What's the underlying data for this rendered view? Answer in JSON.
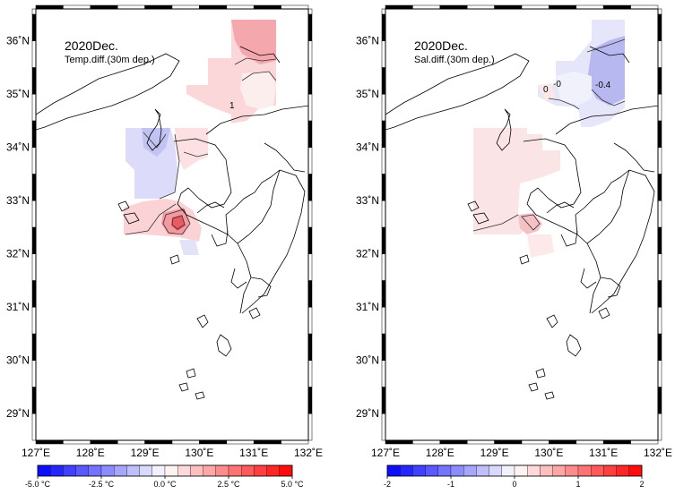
{
  "left_map": {
    "title": "2020Dec.",
    "subtitle": "Temp.diff.(30m dep.)",
    "contour_labels": [
      "1"
    ],
    "colorbar": {
      "ticks": [
        "-5.0 °C",
        "-2.5 °C",
        "0.0 °C",
        "2.5 °C",
        "5.0 °C"
      ],
      "min": -5.0,
      "max": 5.0
    }
  },
  "right_map": {
    "title": "2020Dec.",
    "subtitle": "Sal.diff.(30m dep.)",
    "contour_labels": [
      "0",
      "-0",
      "-0.4"
    ],
    "colorbar": {
      "ticks": [
        "-2",
        "-1",
        "0",
        "1",
        "2"
      ],
      "min": -2,
      "max": 2
    }
  },
  "axes": {
    "x_ticks": [
      "127˚E",
      "128˚E",
      "129˚E",
      "130˚E",
      "131˚E",
      "132˚E"
    ],
    "y_ticks": [
      "36˚N",
      "35˚N",
      "34˚N",
      "33˚N",
      "32˚N",
      "31˚N",
      "30˚N",
      "29˚N"
    ],
    "lon_range": [
      127,
      132
    ],
    "lat_range": [
      28.5,
      36.6
    ]
  },
  "colors": {
    "negative": "#0000ff",
    "positive": "#ff0000",
    "neutral": "#ffffff"
  }
}
